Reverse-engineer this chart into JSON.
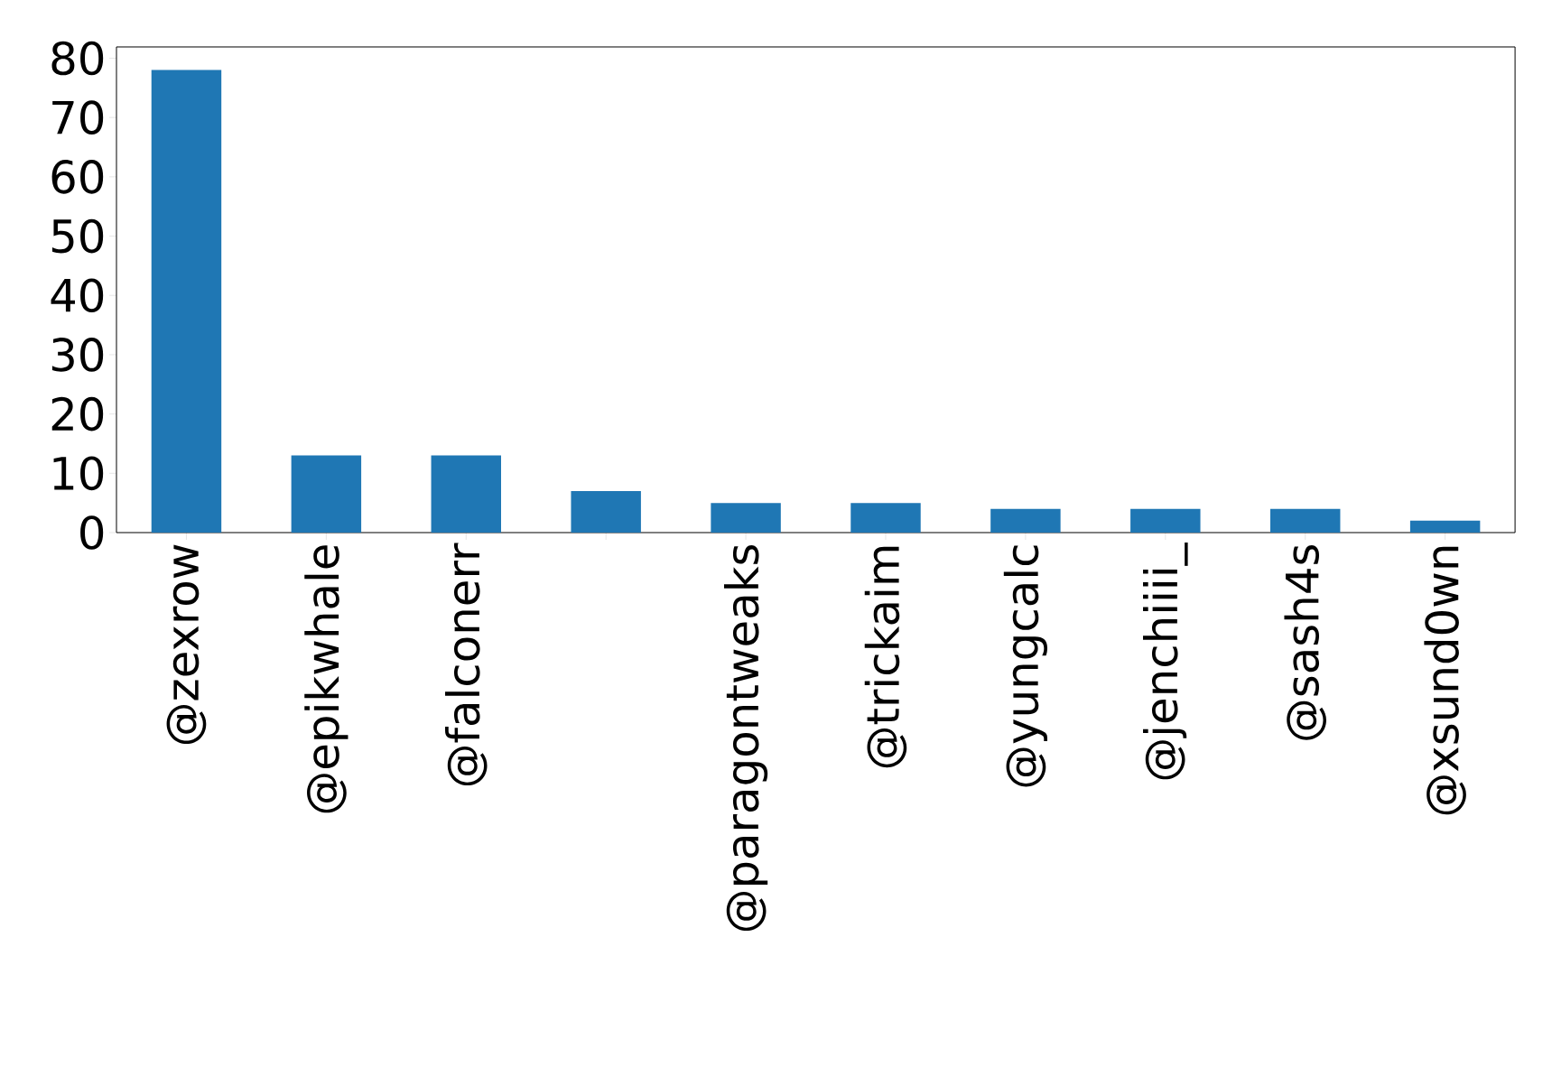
{
  "chart_data": {
    "type": "bar",
    "categories": [
      "@zexrow",
      "@epikwhale",
      "@falconerr",
      null,
      "@paragontweaks",
      "@trickaim",
      "@yungcalc",
      "@jenchiiii_",
      "@sash4s",
      "@xsund0wn"
    ],
    "values": [
      78,
      13,
      13,
      7,
      5,
      5,
      4,
      4,
      4,
      2
    ],
    "color": "#1f77b4",
    "ylim": [
      0,
      81.9
    ],
    "yticks": [
      0,
      10,
      20,
      30,
      40,
      50,
      60,
      70,
      80
    ],
    "grid": false
  }
}
